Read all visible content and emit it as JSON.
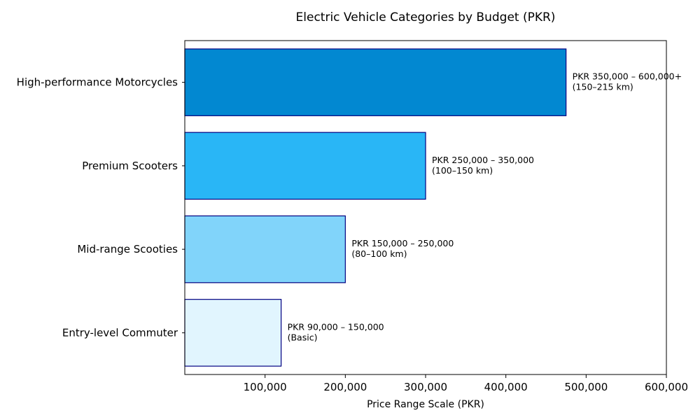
{
  "chart_data": {
    "type": "bar",
    "orientation": "horizontal",
    "title": "Electric Vehicle Categories by Budget (PKR)",
    "xlabel": "Price Range Scale (PKR)",
    "ylabel": "",
    "xlim": [
      0,
      600000
    ],
    "x_ticks": [
      100000,
      200000,
      300000,
      400000,
      500000,
      600000
    ],
    "x_tick_labels": [
      "100,000",
      "200,000",
      "300,000",
      "400,000",
      "500,000",
      "600,000"
    ],
    "categories": [
      "Entry-level Commuter",
      "Mid-range Scooties",
      "Premium Scooters",
      "High-performance Motorcycles"
    ],
    "values": [
      120000,
      200000,
      300000,
      475000
    ],
    "data_labels": [
      [
        "PKR 90,000 – 150,000",
        "(Basic)"
      ],
      [
        "PKR 150,000 – 250,000",
        "(80–100 km)"
      ],
      [
        "PKR 250,000 – 350,000",
        "(100–150 km)"
      ],
      [
        "PKR 350,000 – 600,000+",
        "(150–215 km)"
      ]
    ],
    "colors": [
      "#e1f5fe",
      "#81d4fa",
      "#29b6f6",
      "#0288d1"
    ],
    "edge_color": "#000080",
    "grid": false,
    "legend": "none"
  }
}
